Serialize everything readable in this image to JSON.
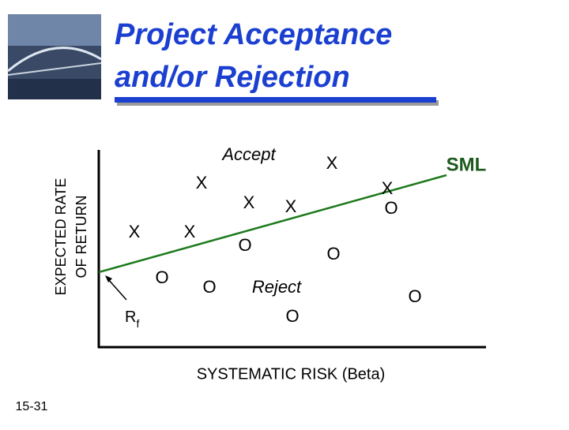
{
  "header": {
    "title_lines": [
      "Project Acceptance",
      "and/or Rejection"
    ]
  },
  "diagram": {
    "y_axis_label_lines": [
      "EXPECTED RATE",
      "OF RETURN"
    ],
    "x_axis_label": "SYSTEMATIC RISK (Beta)",
    "line_label": "SML",
    "accept_label": "Accept",
    "reject_label": "Reject",
    "rf_label": {
      "base": "R",
      "sub": "f"
    },
    "markers": [
      "X",
      "X",
      "X",
      "X",
      "X",
      "X",
      "X",
      "O",
      "O",
      "O",
      "O",
      "O",
      "O",
      "O"
    ]
  },
  "footer": {
    "slide_number": "15-31"
  }
}
